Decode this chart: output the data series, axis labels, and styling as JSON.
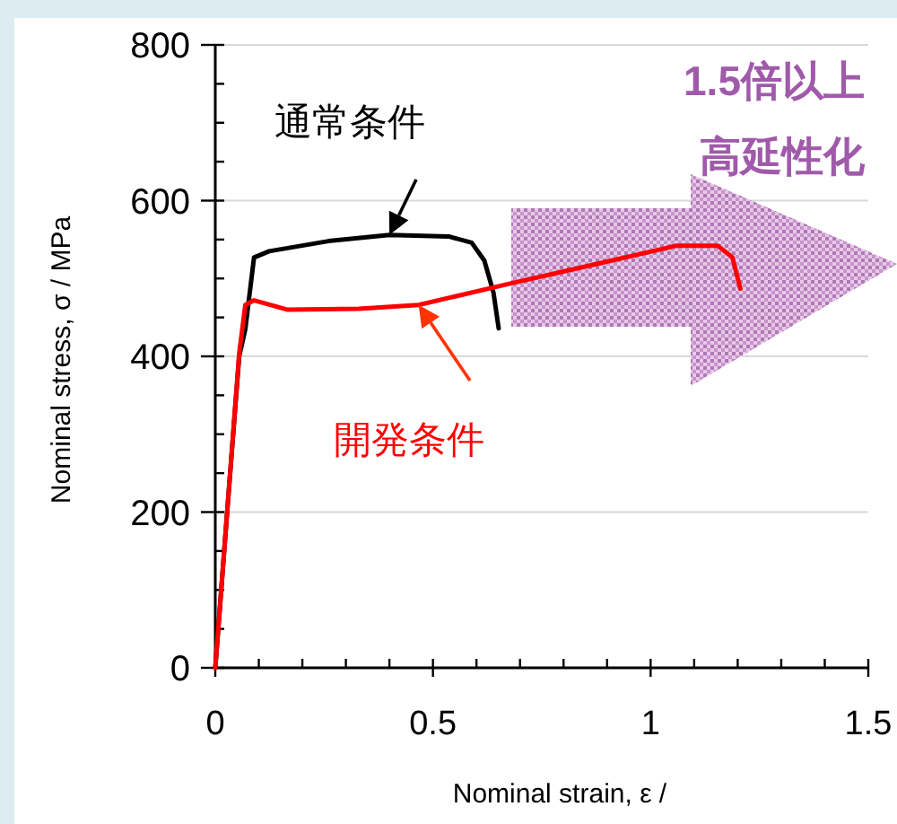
{
  "chart_data": {
    "type": "line",
    "xlabel": "Nominal strain, ε /",
    "ylabel": "Nominal stress, σ / MPa",
    "xlim": [
      0,
      1.5
    ],
    "ylim": [
      0,
      800
    ],
    "xticks": [
      0,
      {
        "value": 0.1,
        "label": null
      },
      {
        "value": 0.2,
        "label": null
      },
      {
        "value": 0.3,
        "label": null
      },
      {
        "value": 0.4,
        "label": null
      },
      0.5,
      {
        "value": 0.6,
        "label": null
      },
      {
        "value": 0.7,
        "label": null
      },
      {
        "value": 0.8,
        "label": null
      },
      {
        "value": 0.9,
        "label": null
      },
      1,
      {
        "value": 1.1,
        "label": null
      },
      {
        "value": 1.2,
        "label": null
      },
      {
        "value": 1.3,
        "label": null
      },
      {
        "value": 1.4,
        "label": null
      },
      1.5
    ],
    "yticks": [
      0,
      {
        "value": 50,
        "label": null
      },
      {
        "value": 100,
        "label": null
      },
      {
        "value": 150,
        "label": null
      },
      200,
      {
        "value": 250,
        "label": null
      },
      {
        "value": 300,
        "label": null
      },
      {
        "value": 350,
        "label": null
      },
      400,
      {
        "value": 450,
        "label": null
      },
      {
        "value": 500,
        "label": null
      },
      {
        "value": 550,
        "label": null
      },
      600,
      {
        "value": 650,
        "label": null
      },
      {
        "value": 700,
        "label": null
      },
      {
        "value": 750,
        "label": null
      },
      800
    ],
    "grid": "y",
    "marker": "none",
    "line_style": "solid",
    "series": [
      {
        "name": "通常条件",
        "color": "#000000",
        "x": [
          0,
          0.03,
          0.055,
          0.069,
          0.089,
          0.124,
          0.26,
          0.4,
          0.536,
          0.589,
          0.618,
          0.639,
          0.651
        ],
        "values": [
          0,
          220,
          400,
          435,
          527,
          535,
          548,
          556,
          554,
          546,
          523,
          482,
          436
        ]
      },
      {
        "name": "開発条件",
        "color": "#ff0000",
        "x": [
          0,
          0.028,
          0.055,
          0.069,
          0.089,
          0.165,
          0.33,
          0.467,
          0.536,
          0.673,
          0.879,
          1.058,
          1.154,
          1.188,
          1.206
        ],
        "values": [
          0,
          205,
          404,
          466,
          472,
          460,
          461,
          466,
          475,
          493,
          519,
          542,
          542,
          527,
          487
        ]
      }
    ],
    "annotations": [
      "1.5倍以上",
      "高延性化"
    ]
  }
}
